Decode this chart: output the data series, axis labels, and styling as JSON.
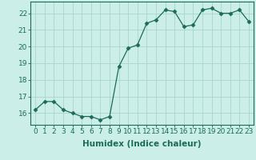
{
  "x": [
    0,
    1,
    2,
    3,
    4,
    5,
    6,
    7,
    8,
    9,
    10,
    11,
    12,
    13,
    14,
    15,
    16,
    17,
    18,
    19,
    20,
    21,
    22,
    23
  ],
  "y": [
    16.2,
    16.7,
    16.7,
    16.2,
    16.0,
    15.8,
    15.8,
    15.6,
    15.8,
    18.8,
    19.9,
    20.1,
    21.4,
    21.6,
    22.2,
    22.1,
    21.2,
    21.3,
    22.2,
    22.3,
    22.0,
    22.0,
    22.2,
    21.5
  ],
  "line_color": "#1a6b5a",
  "marker": "D",
  "marker_size": 2.5,
  "bg_color": "#cceee8",
  "grid_color": "#aad4cc",
  "xlabel": "Humidex (Indice chaleur)",
  "xlim": [
    -0.5,
    23.5
  ],
  "ylim": [
    15.3,
    22.7
  ],
  "yticks": [
    16,
    17,
    18,
    19,
    20,
    21,
    22
  ],
  "xticks": [
    0,
    1,
    2,
    3,
    4,
    5,
    6,
    7,
    8,
    9,
    10,
    11,
    12,
    13,
    14,
    15,
    16,
    17,
    18,
    19,
    20,
    21,
    22,
    23
  ],
  "xtick_labels": [
    "0",
    "1",
    "2",
    "3",
    "4",
    "5",
    "6",
    "7",
    "8",
    "9",
    "10",
    "11",
    "12",
    "13",
    "14",
    "15",
    "16",
    "17",
    "18",
    "19",
    "20",
    "21",
    "22",
    "23"
  ],
  "tick_color": "#1a6b5a",
  "label_fontsize": 6.5,
  "xlabel_fontsize": 7.5,
  "axis_color": "#1a6b5a"
}
